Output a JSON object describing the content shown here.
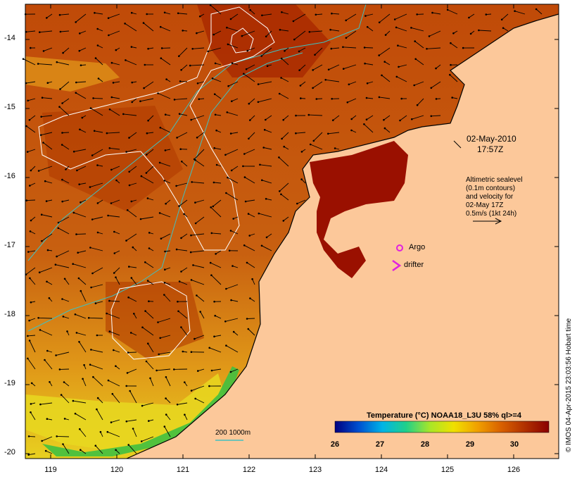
{
  "map": {
    "x_ticks": [
      "119",
      "120",
      "121",
      "122",
      "123",
      "124",
      "125",
      "126"
    ],
    "y_ticks": [
      "-14",
      "-15",
      "-16",
      "-17",
      "-18",
      "-19",
      "-20"
    ],
    "timestamp_date": "02-May-2010",
    "timestamp_time": "17:57Z",
    "legend_lines": [
      "Altimetric sealevel",
      "(0.1m contours)",
      "and velocity for",
      "02-May 17Z",
      "0.5m/s (1kt 24h)"
    ],
    "argo_label": "Argo",
    "drifter_label": "drifter",
    "bathy_label": "200  1000m",
    "colorbar_title": "Temperature (°C) NOAA18_L3U 58% ql>=4",
    "colorbar_ticks": [
      "26",
      "27",
      "28",
      "29",
      "30"
    ],
    "colorbar_colors": [
      "#000080",
      "#0050d0",
      "#00b4e6",
      "#20d08a",
      "#a8e628",
      "#f0e000",
      "#f0a000",
      "#d86000",
      "#b03000",
      "#8a0000"
    ],
    "copyright": "© IMOS 04-Apr-2015 23:03:56 Hobart time",
    "colors": {
      "land": "#fcc89a",
      "ocean_warm": "#c0500a",
      "ocean_hot": "#9a1000",
      "ocean_cool": "#f0c020",
      "bathy": "#40c0c0"
    }
  }
}
